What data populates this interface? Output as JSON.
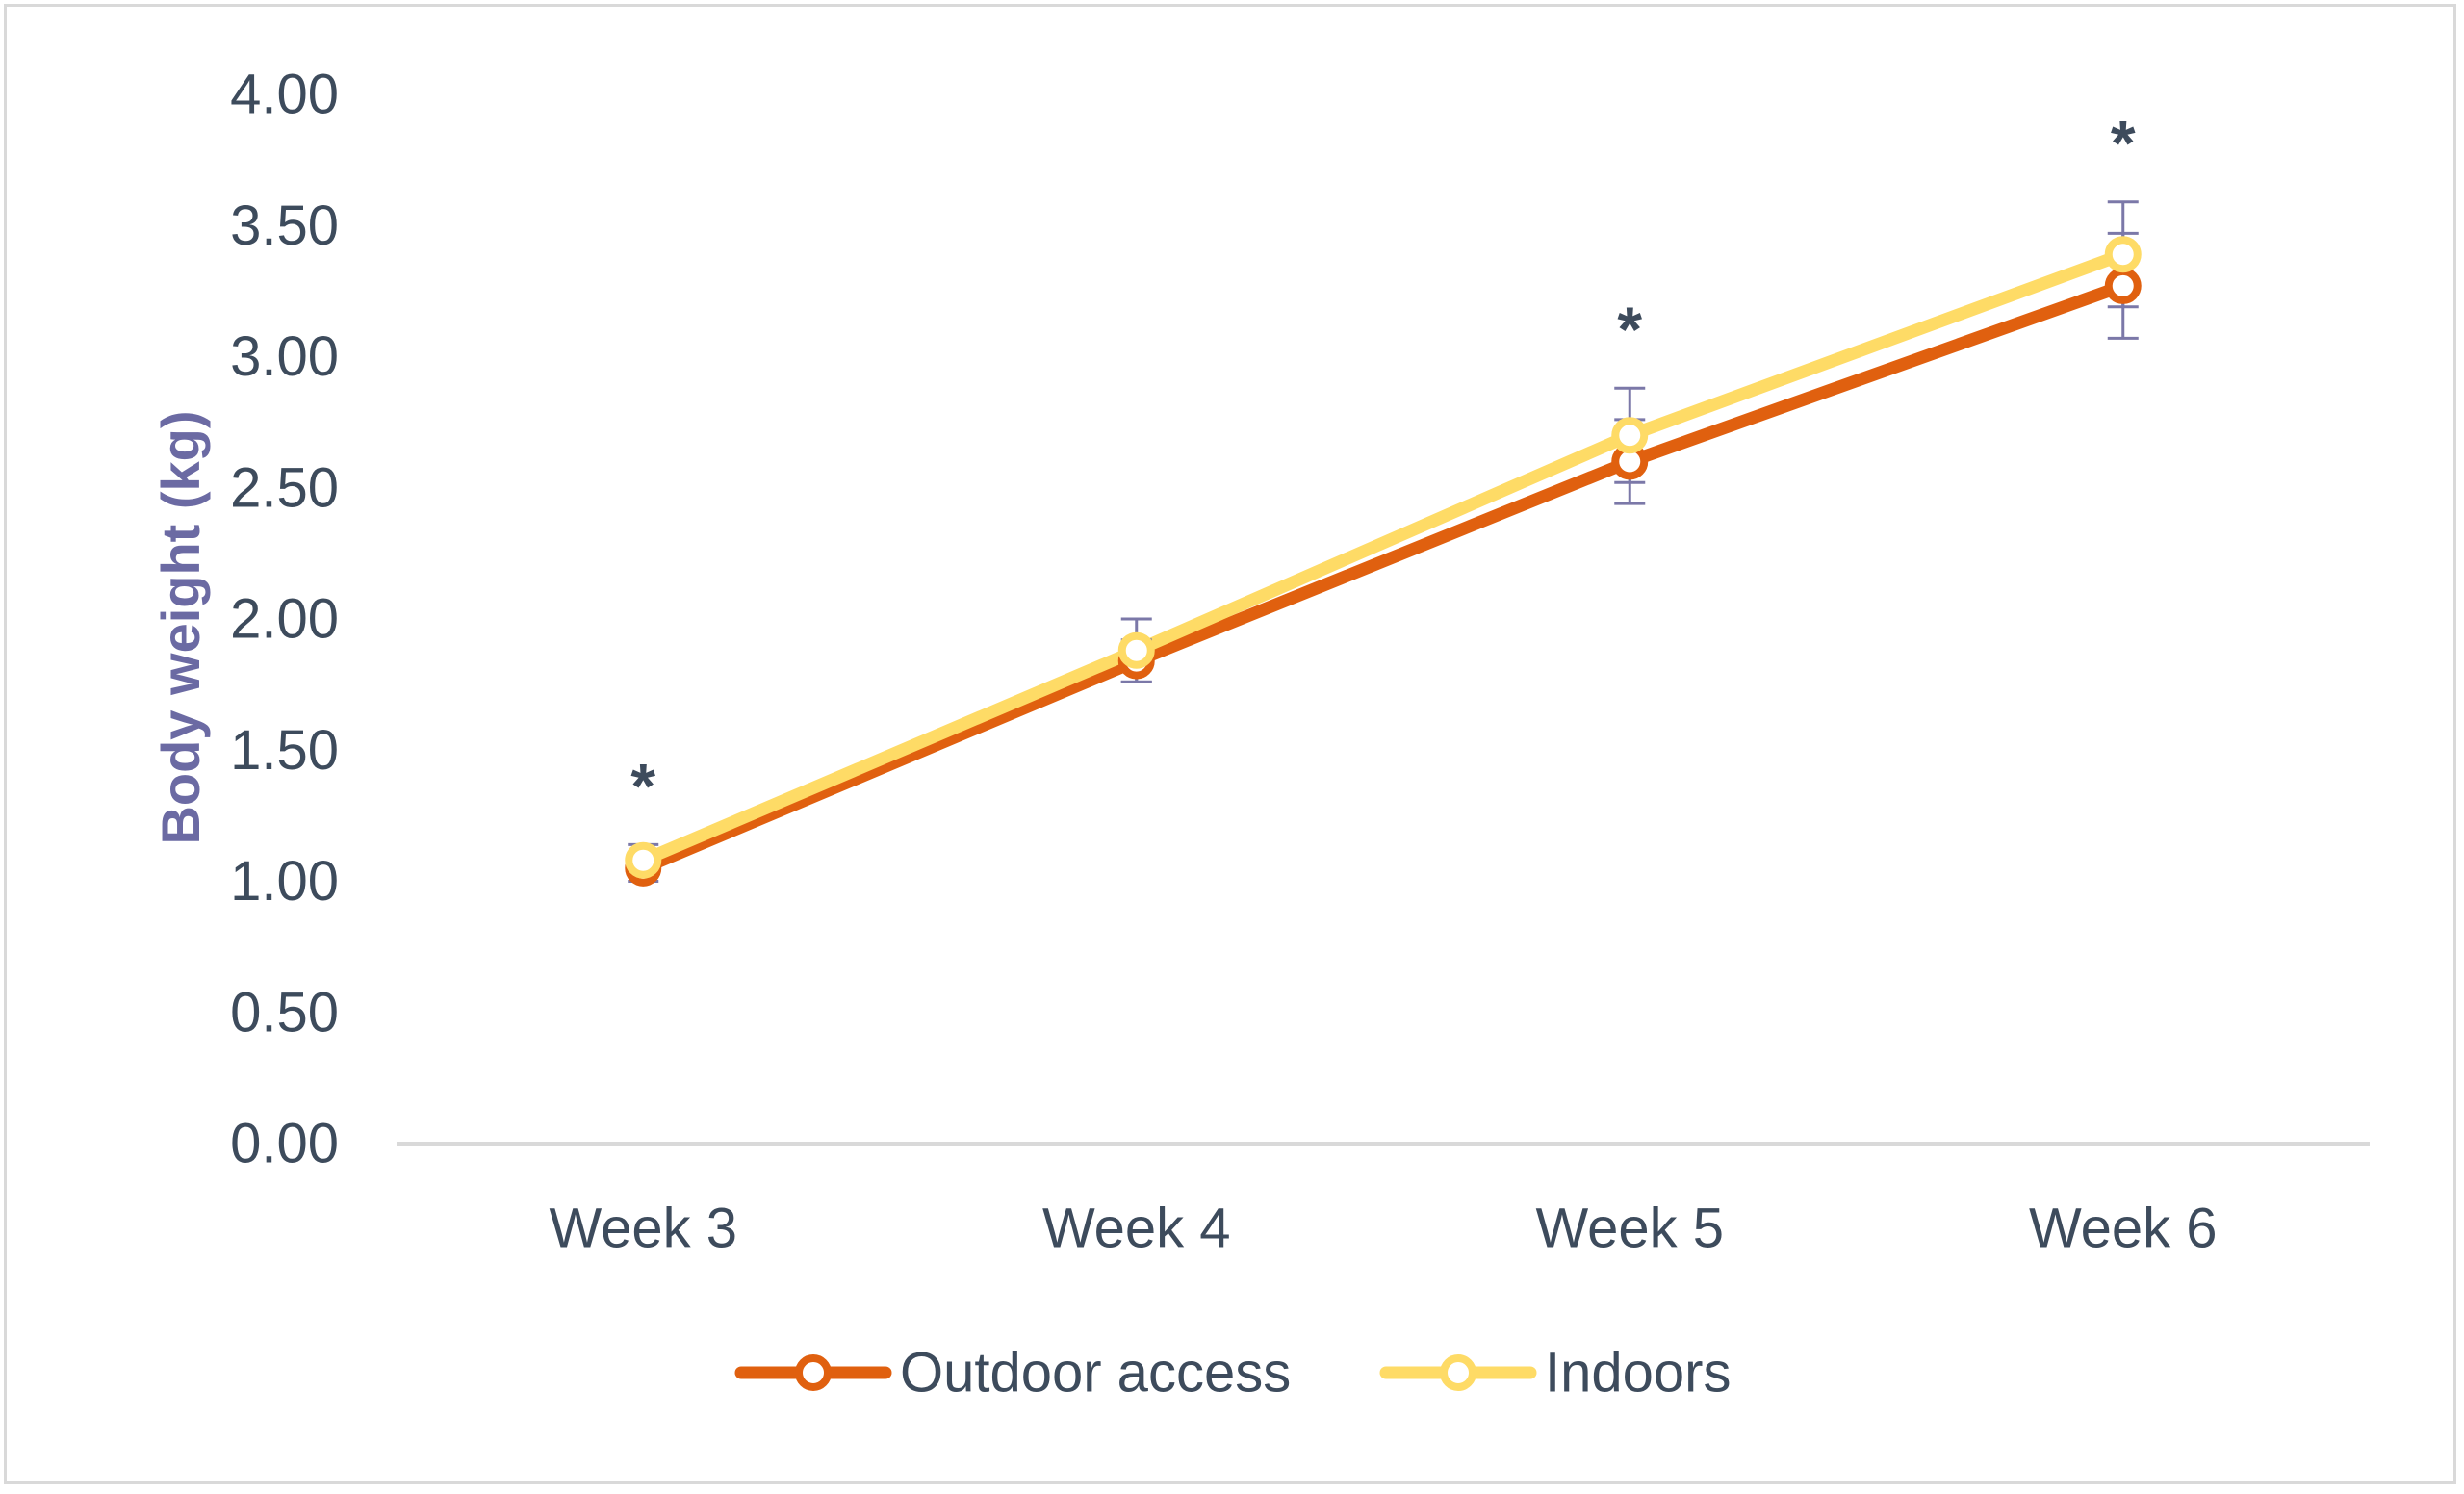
{
  "chart_data": {
    "type": "line",
    "title": "",
    "xlabel": "",
    "ylabel": "Body weight (kg)",
    "categories": [
      "Week 3",
      "Week 4",
      "Week 5",
      "Week 6"
    ],
    "ylim": [
      0,
      4
    ],
    "yticks": [
      "0.00",
      "0.50",
      "1.00",
      "1.50",
      "2.00",
      "2.50",
      "3.00",
      "3.50",
      "4.00"
    ],
    "grid": false,
    "legend_position": "bottom",
    "series": [
      {
        "name": "Outdoor access",
        "values": [
          1.05,
          1.84,
          2.6,
          3.27
        ],
        "error": [
          0.05,
          0.08,
          0.16,
          0.2
        ],
        "color": "#e0600f"
      },
      {
        "name": "Indoors",
        "values": [
          1.08,
          1.88,
          2.7,
          3.39
        ],
        "error": [
          0.06,
          0.12,
          0.18,
          0.2
        ],
        "color": "#fedb66"
      }
    ],
    "significance": [
      "*",
      "",
      "*",
      "*"
    ],
    "colors": {
      "axis_line": "#d9d9d9",
      "tick_text": "#3d4b5c",
      "axis_title": "#6b6aa3",
      "error_bar": "#7b78a8"
    }
  }
}
